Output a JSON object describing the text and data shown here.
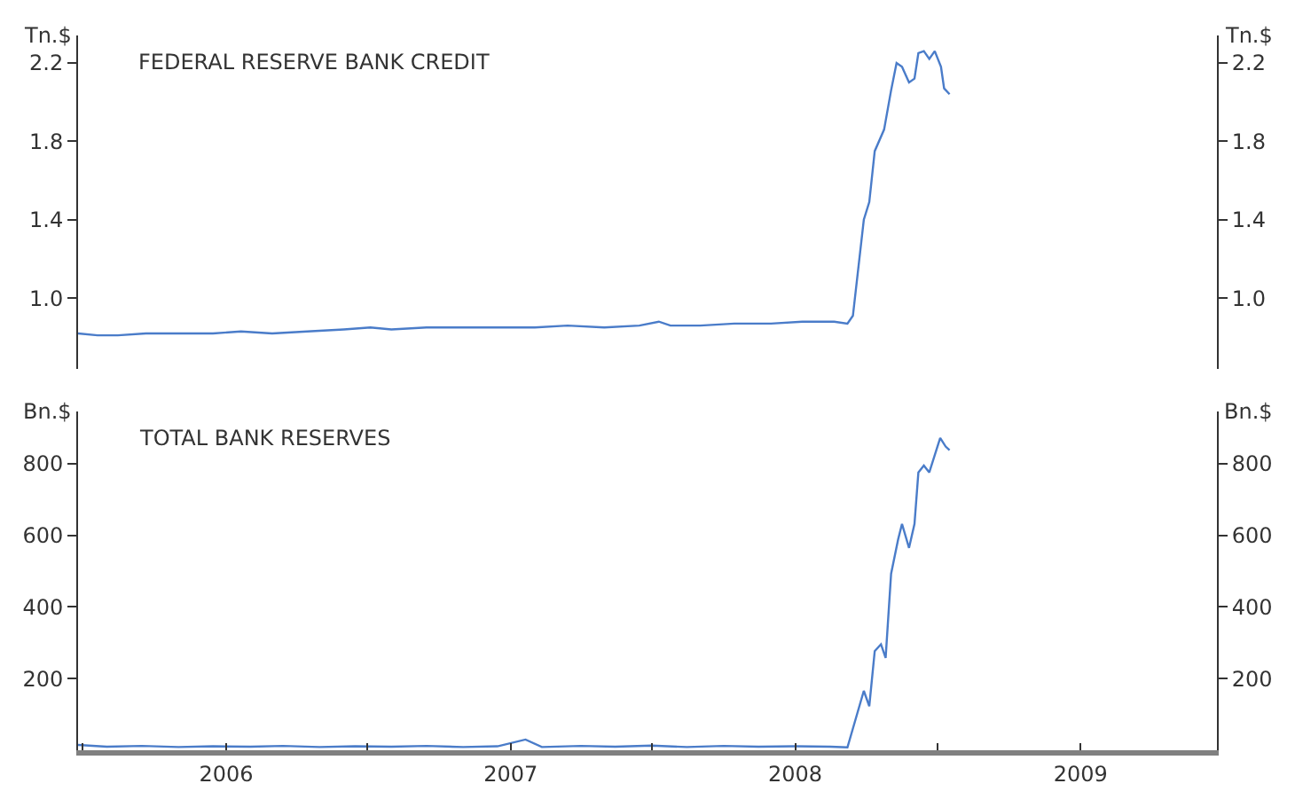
{
  "chart_data": [
    {
      "type": "line",
      "title": "FEDERAL RESERVE BANK CREDIT",
      "ylabel": "Tn.$",
      "y2label": "Tn.$",
      "tick_labels": "y",
      "xlim": [
        "2005-06-25",
        "2009-06-25"
      ],
      "ylim": [
        0.64,
        2.34
      ],
      "yticks": [
        {
          "value": 1.0,
          "label": "1.0"
        },
        1.4,
        1.8,
        2.2
      ],
      "y2lim": [
        0.64,
        2.34
      ],
      "y2ticks": [
        {
          "value": 1.0,
          "label": "1.0"
        },
        1.4,
        1.8,
        2.2
      ],
      "series": [
        {
          "color": "#4a7cc9",
          "x": [
            "2005-06-25",
            "2005-07-20",
            "2005-08-15",
            "2005-09-20",
            "2005-11-01",
            "2005-12-15",
            "2006-01-20",
            "2006-03-01",
            "2006-04-15",
            "2006-06-01",
            "2006-07-05",
            "2006-08-01",
            "2006-09-15",
            "2006-11-01",
            "2006-12-15",
            "2007-02-01",
            "2007-03-15",
            "2007-05-01",
            "2007-06-15",
            "2007-07-10",
            "2007-07-25",
            "2007-09-01",
            "2007-10-15",
            "2007-12-01",
            "2008-01-10",
            "2008-02-01",
            "2008-02-20",
            "2008-03-08",
            "2008-03-15",
            "2008-03-29",
            "2008-04-05",
            "2008-04-12",
            "2008-04-24",
            "2008-05-03",
            "2008-05-10",
            "2008-05-17",
            "2008-05-26",
            "2008-06-02",
            "2008-06-07",
            "2008-06-14",
            "2008-06-21",
            "2008-06-28",
            "2008-07-06",
            "2008-07-10",
            "2008-07-17"
          ],
          "values": [
            0.82,
            0.81,
            0.81,
            0.82,
            0.82,
            0.82,
            0.83,
            0.82,
            0.83,
            0.84,
            0.85,
            0.84,
            0.85,
            0.85,
            0.85,
            0.85,
            0.86,
            0.85,
            0.86,
            0.88,
            0.86,
            0.86,
            0.87,
            0.87,
            0.88,
            0.88,
            0.88,
            0.87,
            0.91,
            1.4,
            1.49,
            1.75,
            1.86,
            2.06,
            2.2,
            2.18,
            2.1,
            2.12,
            2.25,
            2.26,
            2.22,
            2.26,
            2.18,
            2.07,
            2.04
          ]
        }
      ]
    },
    {
      "type": "line",
      "title": "TOTAL BANK RESERVES",
      "ylabel": "Bn.$",
      "y2label": "Bn.$",
      "xlim": [
        "2005-06-25",
        "2009-06-25"
      ],
      "xticks": [
        {
          "value": "2005-07-01",
          "label": null
        },
        {
          "value": "2006-01-01",
          "label": "2006"
        },
        {
          "value": "2006-07-01",
          "label": null
        },
        {
          "value": "2007-01-01",
          "label": "2007"
        },
        {
          "value": "2007-07-01",
          "label": null
        },
        {
          "value": "2008-01-01",
          "label": "2008"
        },
        {
          "value": "2008-07-01",
          "label": null
        },
        {
          "value": "2009-01-01",
          "label": "2009"
        }
      ],
      "ylim": [
        0,
        945
      ],
      "yticks": [
        200,
        400,
        600,
        800
      ],
      "y2lim": [
        0,
        945
      ],
      "y2ticks": [
        200,
        400,
        600,
        800
      ],
      "series": [
        {
          "color": "#4a7cc9",
          "x": [
            "2005-06-25",
            "2005-08-01",
            "2005-09-15",
            "2005-11-01",
            "2005-12-15",
            "2006-02-01",
            "2006-03-15",
            "2006-05-01",
            "2006-06-15",
            "2006-08-01",
            "2006-09-15",
            "2006-11-01",
            "2006-12-15",
            "2007-01-20",
            "2007-02-10",
            "2007-04-01",
            "2007-05-15",
            "2007-07-01",
            "2007-08-15",
            "2007-10-01",
            "2007-11-15",
            "2008-01-01",
            "2008-02-15",
            "2008-03-08",
            "2008-03-29",
            "2008-04-05",
            "2008-04-12",
            "2008-04-20",
            "2008-04-26",
            "2008-05-03",
            "2008-05-12",
            "2008-05-17",
            "2008-05-26",
            "2008-06-02",
            "2008-06-07",
            "2008-06-14",
            "2008-06-21",
            "2008-06-30",
            "2008-07-05",
            "2008-07-12",
            "2008-07-17"
          ],
          "values": [
            15,
            10,
            12,
            9,
            11,
            10,
            12,
            9,
            11,
            10,
            12,
            9,
            11,
            30,
            9,
            12,
            10,
            13,
            9,
            12,
            10,
            11,
            10,
            8,
            166,
            123,
            277,
            296,
            258,
            493,
            589,
            632,
            565,
            632,
            776,
            795,
            776,
            838,
            872,
            848,
            838
          ]
        }
      ]
    }
  ]
}
